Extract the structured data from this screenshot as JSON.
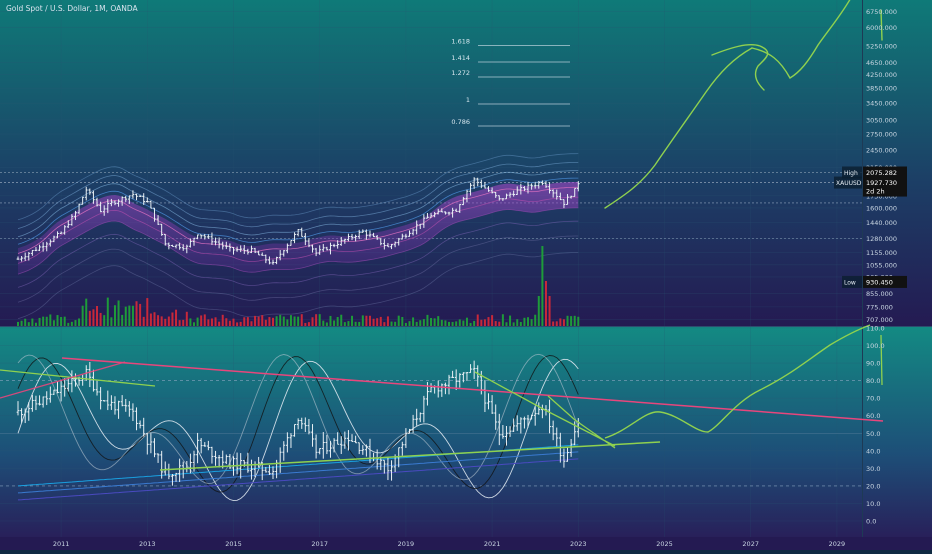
{
  "header": {
    "symbol_title": "Gold Spot / U.S. Dollar, 1M, OANDA"
  },
  "colors": {
    "up": "#e9f1f5",
    "volume_up": "#1e9b3a",
    "volume_down": "#c8283a",
    "drawing_green": "#8fd14f",
    "trendline_pink": "#e8467c",
    "price_tag_bg": "#111111",
    "pane_top": "#0f7a78",
    "pane_bottom": "#241a52"
  },
  "price_axis": {
    "ticks": [
      "6750.000",
      "6000.000",
      "5250.000",
      "4650.000",
      "4250.000",
      "3850.000",
      "3450.000",
      "3050.000",
      "2750.000",
      "2450.000",
      "2150.000",
      "1750.000",
      "1600.000",
      "1440.000",
      "1280.000",
      "1155.000",
      "1055.000",
      "965.000",
      "855.000",
      "775.000",
      "707.000"
    ],
    "high_label": "High",
    "high_value": "2075.282",
    "last_symbol": "XAUUSD",
    "last_value": "1927.730",
    "last_countdown": "2d 2h",
    "low_label": "Low",
    "low_value": "930.450"
  },
  "fib_levels": [
    {
      "label": "1.618"
    },
    {
      "label": "1.414"
    },
    {
      "label": "1.272"
    },
    {
      "label": "1"
    },
    {
      "label": "0.786"
    }
  ],
  "osc_axis": {
    "ticks": [
      "110.0",
      "100.0",
      "90.0",
      "80.0",
      "70.0",
      "60.0",
      "50.0",
      "40.0",
      "30.0",
      "20.0",
      "10.0",
      "0.0"
    ]
  },
  "time_axis": {
    "labels": [
      "2011",
      "2013",
      "2015",
      "2017",
      "2019",
      "2021",
      "2023",
      "2025",
      "2027",
      "2029"
    ]
  },
  "chart_data": {
    "type": "candlestick",
    "title": "Gold Spot / U.S. Dollar, 1M, OANDA",
    "interval": "1M",
    "source": "OANDA",
    "x_range": [
      "2010-01",
      "2030-06"
    ],
    "y_scale": "log",
    "y_range": [
      707,
      6750
    ],
    "high": 2075.282,
    "low": 930.45,
    "last": 1927.73,
    "price_path": [
      [
        "2010-01",
        1100
      ],
      [
        "2010-07",
        1200
      ],
      [
        "2011-01",
        1330
      ],
      [
        "2011-05",
        1540
      ],
      [
        "2011-08",
        1830
      ],
      [
        "2011-12",
        1570
      ],
      [
        "2012-03",
        1660
      ],
      [
        "2012-09",
        1770
      ],
      [
        "2013-01",
        1670
      ],
      [
        "2013-06",
        1230
      ],
      [
        "2013-12",
        1200
      ],
      [
        "2014-03",
        1330
      ],
      [
        "2014-12",
        1180
      ],
      [
        "2015-06",
        1170
      ],
      [
        "2015-12",
        1060
      ],
      [
        "2016-07",
        1350
      ],
      [
        "2016-12",
        1150
      ],
      [
        "2017-09",
        1280
      ],
      [
        "2018-01",
        1345
      ],
      [
        "2018-08",
        1200
      ],
      [
        "2019-01",
        1320
      ],
      [
        "2019-08",
        1520
      ],
      [
        "2020-03",
        1580
      ],
      [
        "2020-08",
        1970
      ],
      [
        "2021-03",
        1700
      ],
      [
        "2021-08",
        1815
      ],
      [
        "2022-03",
        1940
      ],
      [
        "2022-09",
        1660
      ],
      [
        "2022-12",
        1820
      ],
      [
        "2023-01",
        1927
      ]
    ],
    "oscillator_path": [
      [
        "2010-01",
        62
      ],
      [
        "2010-09",
        70
      ],
      [
        "2011-08",
        84
      ],
      [
        "2012-01",
        68
      ],
      [
        "2012-09",
        62
      ],
      [
        "2013-06",
        27
      ],
      [
        "2013-12",
        31
      ],
      [
        "2014-03",
        44
      ],
      [
        "2014-12",
        33
      ],
      [
        "2015-12",
        29
      ],
      [
        "2016-07",
        60
      ],
      [
        "2016-12",
        40
      ],
      [
        "2017-09",
        48
      ],
      [
        "2018-08",
        30
      ],
      [
        "2019-01",
        48
      ],
      [
        "2019-08",
        75
      ],
      [
        "2020-08",
        85
      ],
      [
        "2021-03",
        50
      ],
      [
        "2021-08",
        55
      ],
      [
        "2022-03",
        66
      ],
      [
        "2022-09",
        35
      ],
      [
        "2022-12",
        52
      ],
      [
        "2023-01",
        57
      ]
    ],
    "oscillator_range": [
      0,
      110
    ]
  }
}
